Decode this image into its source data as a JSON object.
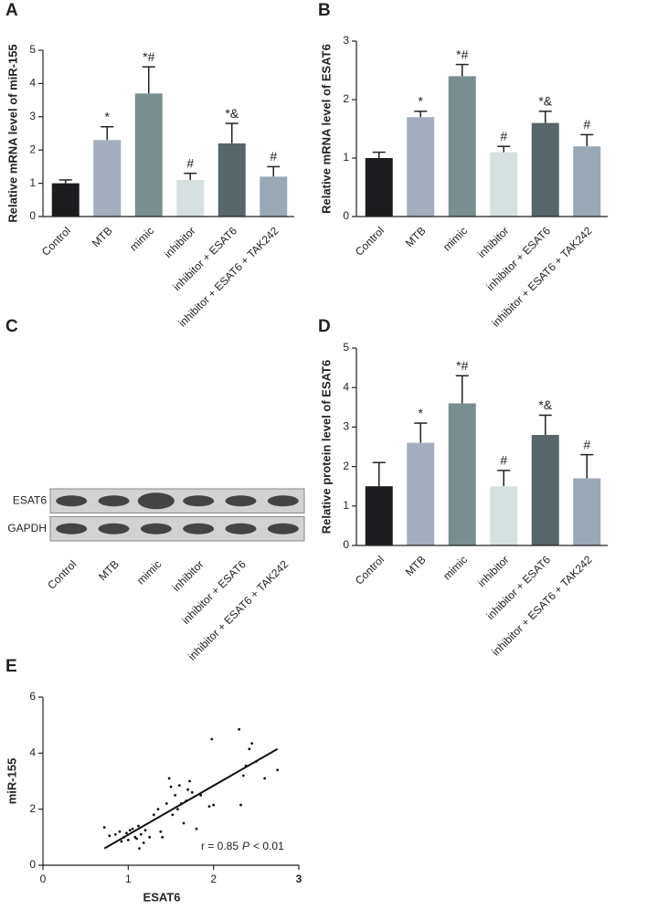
{
  "chart_data": [
    {
      "type": "bar",
      "panel": "A",
      "ylabel": "Relative mRNA level of miR-155",
      "categories": [
        "Control",
        "MTB",
        "mimic",
        "inhibitor",
        "inhibitor + ESAT6",
        "inhibitor + ESAT6 + TAK242"
      ],
      "values": [
        1,
        2.3,
        3.7,
        1.1,
        2.2,
        1.2
      ],
      "errors": [
        0.1,
        0.4,
        0.8,
        0.2,
        0.6,
        0.3
      ],
      "significance": [
        null,
        "*",
        "*#",
        "#",
        "*&",
        "#"
      ],
      "colors": [
        "#1c1c1e",
        "#a3adbb",
        "#7b8e8f",
        "#d6e0e1",
        "#566669",
        "#9aa8b6"
      ],
      "ylim": [
        0,
        5
      ],
      "yticks": [
        0,
        1,
        2,
        3,
        4,
        5
      ]
    },
    {
      "type": "bar",
      "panel": "B",
      "ylabel": "Relative mRNA level of ESAT6",
      "categories": [
        "Control",
        "MTB",
        "mimic",
        "inhibitor",
        "inhibitor + ESAT6",
        "inhibitor + ESAT6 + TAK242"
      ],
      "values": [
        1,
        1.7,
        2.4,
        1.1,
        1.6,
        1.2
      ],
      "errors": [
        0.1,
        0.1,
        0.2,
        0.1,
        0.2,
        0.2
      ],
      "significance": [
        null,
        "*",
        "*#",
        "#",
        "*&",
        "#"
      ],
      "colors": [
        "#1c1c1e",
        "#a3adbb",
        "#7b8e8f",
        "#d6e0e1",
        "#566669",
        "#9aa8b6"
      ],
      "ylim": [
        0,
        3
      ],
      "yticks": [
        0,
        1,
        2,
        3
      ]
    },
    {
      "type": "blot",
      "panel": "C",
      "rows": [
        "ESAT6",
        "GAPDH"
      ],
      "categories": [
        "Control",
        "MTB",
        "mimic",
        "inhibitor",
        "inhibitor + ESAT6",
        "inhibitor + ESAT6 + TAK242"
      ]
    },
    {
      "type": "bar",
      "panel": "D",
      "ylabel": "Relative protein level of ESAT6",
      "categories": [
        "Control",
        "MTB",
        "mimic",
        "inhibitor",
        "inhibitor + ESAT6",
        "inhibitor + ESAT6 + TAK242"
      ],
      "values": [
        1.5,
        2.6,
        3.6,
        1.5,
        2.8,
        1.7
      ],
      "errors": [
        0.6,
        0.5,
        0.7,
        0.4,
        0.5,
        0.6
      ],
      "significance": [
        null,
        "*",
        "*#",
        "#",
        "*&",
        "#"
      ],
      "colors": [
        "#1c1c1e",
        "#a3adbb",
        "#7b8e8f",
        "#d6e0e1",
        "#566669",
        "#9aa8b6"
      ],
      "ylim": [
        0,
        5
      ],
      "yticks": [
        0,
        1,
        2,
        3,
        4,
        5
      ]
    },
    {
      "type": "scatter",
      "panel": "E",
      "xlabel": "ESAT6",
      "ylabel": "miR-155",
      "x": [
        0.72,
        0.78,
        0.85,
        0.9,
        0.92,
        0.95,
        0.98,
        1.0,
        1.02,
        1.05,
        1.08,
        1.1,
        1.12,
        1.13,
        1.15,
        1.18,
        1.2,
        1.25,
        1.3,
        1.35,
        1.38,
        1.4,
        1.45,
        1.48,
        1.5,
        1.52,
        1.55,
        1.58,
        1.6,
        1.62,
        1.65,
        1.68,
        1.7,
        1.72,
        1.75,
        1.8,
        1.85,
        1.95,
        2.0,
        1.98,
        2.3,
        2.32,
        2.35,
        2.38,
        2.42,
        2.45,
        2.5,
        2.6,
        2.75
      ],
      "y": [
        1.35,
        1.05,
        1.1,
        1.2,
        0.85,
        1.0,
        1.15,
        0.9,
        1.25,
        1.3,
        1.0,
        0.95,
        1.4,
        0.6,
        1.1,
        0.8,
        1.25,
        1.0,
        1.8,
        2.0,
        1.2,
        1.0,
        2.2,
        3.1,
        2.8,
        1.8,
        2.5,
        2.0,
        2.85,
        2.2,
        1.5,
        2.3,
        2.7,
        3.0,
        2.6,
        1.3,
        2.5,
        2.1,
        2.15,
        4.5,
        4.85,
        2.15,
        3.2,
        3.55,
        4.15,
        4.35,
        3.7,
        3.1,
        3.4
      ],
      "fit": {
        "x": [
          0.72,
          2.75
        ],
        "y": [
          0.6,
          4.15
        ]
      },
      "annotation": [
        "r = 0.85",
        "P",
        "< 0.01"
      ],
      "color": "#111111",
      "xlim": [
        0,
        3
      ],
      "xticks": [
        0,
        1,
        2,
        3
      ],
      "ylim": [
        0,
        6
      ],
      "yticks": [
        0,
        2,
        4,
        6
      ]
    }
  ]
}
